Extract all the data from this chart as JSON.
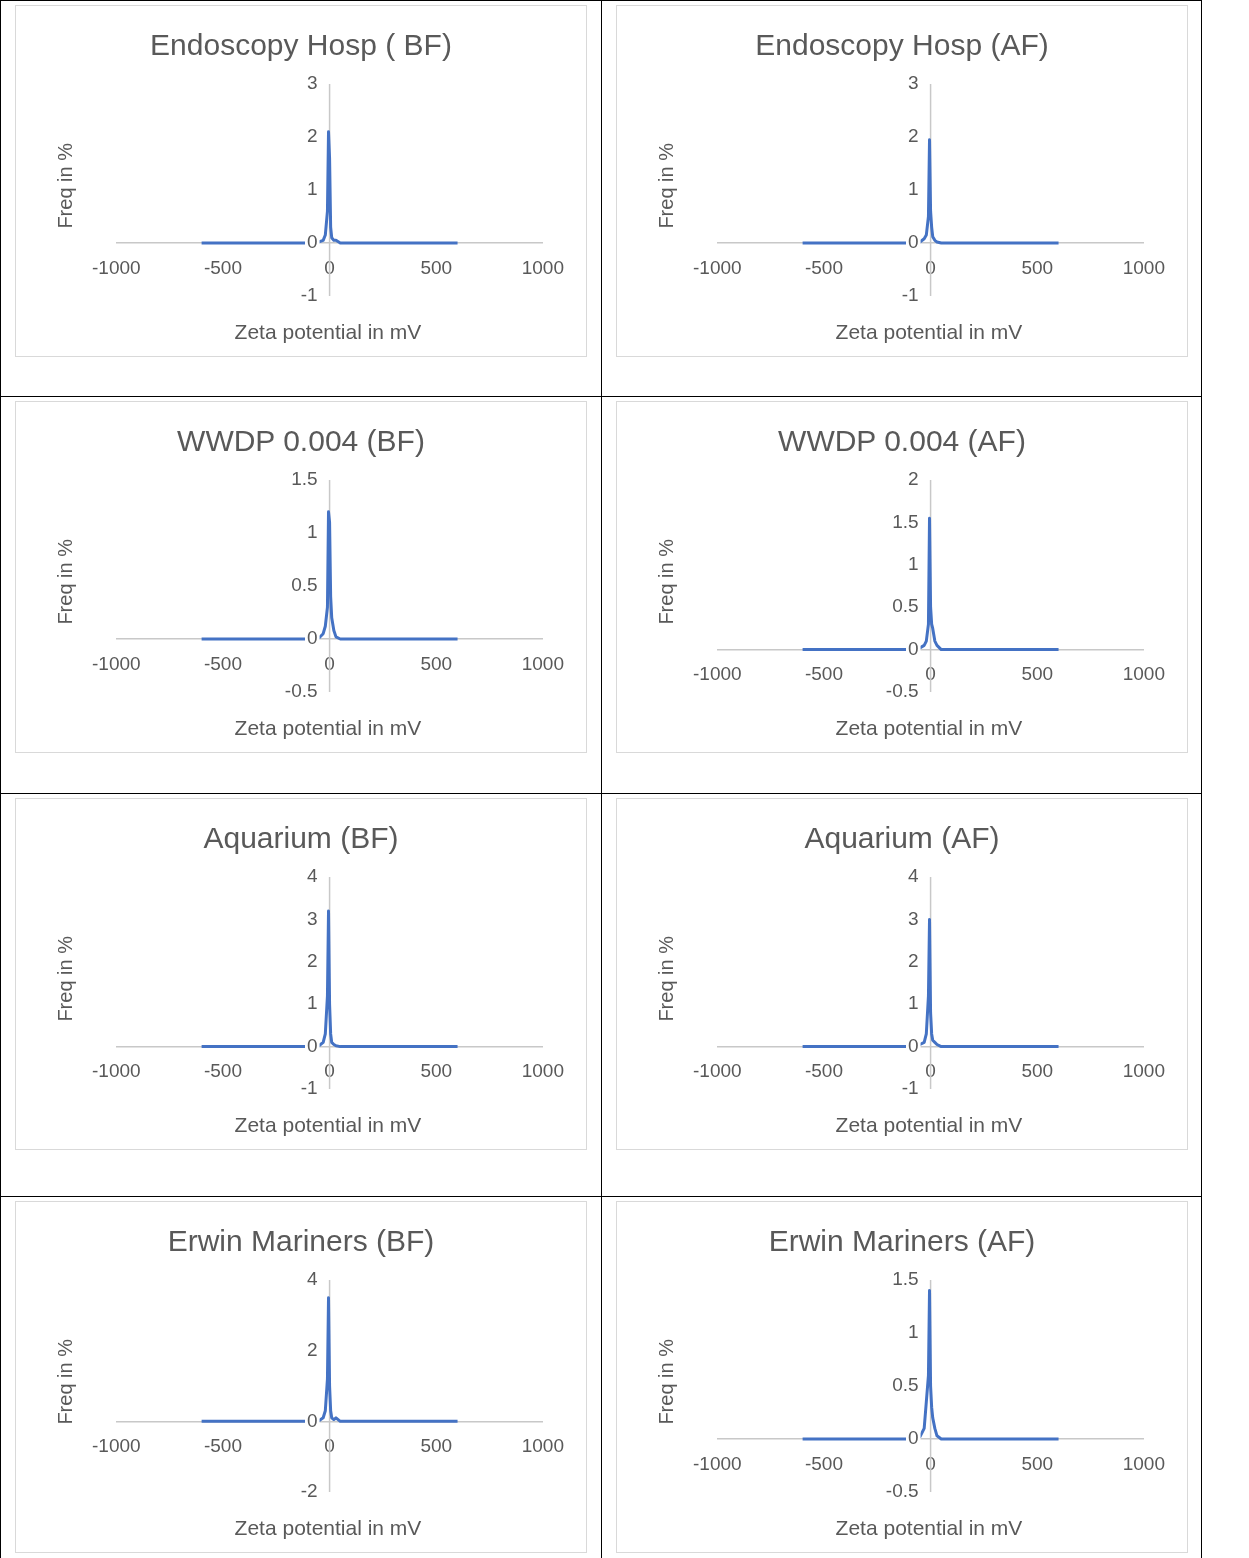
{
  "chart_data": [
    {
      "type": "line",
      "title": "Endoscopy Hosp ( BF)",
      "xlabel": "Zeta potential in mV",
      "ylabel": "Freq in %",
      "x": [
        -600,
        -100,
        -50,
        -30,
        -20,
        -10,
        -5,
        0,
        5,
        10,
        20,
        30,
        50,
        100,
        600
      ],
      "values": [
        0,
        0,
        0.02,
        0.05,
        0.15,
        0.6,
        2.1,
        1.6,
        0.3,
        0.1,
        0.05,
        0.05,
        0,
        0,
        0
      ],
      "color": "#4472c4",
      "xlim": [
        -1000,
        1000
      ],
      "xticks": [
        -1000,
        -500,
        0,
        500,
        1000
      ],
      "ylim": [
        -1,
        3
      ],
      "yticks": [
        -1,
        0,
        1,
        2,
        3
      ],
      "grid": false,
      "legend": false,
      "marker": "none"
    },
    {
      "type": "line",
      "title": "Endoscopy Hosp (AF)",
      "xlabel": "Zeta potential in mV",
      "ylabel": "Freq in %",
      "x": [
        -600,
        -100,
        -50,
        -30,
        -20,
        -10,
        -5,
        0,
        5,
        10,
        20,
        30,
        50,
        100,
        600
      ],
      "values": [
        0,
        0,
        0.02,
        0.08,
        0.15,
        0.5,
        1.95,
        0.6,
        0.3,
        0.12,
        0.05,
        0.02,
        0,
        0,
        0
      ],
      "color": "#4472c4",
      "xlim": [
        -1000,
        1000
      ],
      "xticks": [
        -1000,
        -500,
        0,
        500,
        1000
      ],
      "ylim": [
        -1,
        3
      ],
      "yticks": [
        -1,
        0,
        1,
        2,
        3
      ],
      "grid": false,
      "legend": false,
      "marker": "none"
    },
    {
      "type": "line",
      "title": "WWDP 0.004 (BF)",
      "xlabel": "Zeta potential in mV",
      "ylabel": "Freq in %",
      "x": [
        -600,
        -100,
        -50,
        -30,
        -20,
        -10,
        -5,
        0,
        5,
        10,
        20,
        30,
        50,
        100,
        600
      ],
      "values": [
        0,
        0,
        0.01,
        0.05,
        0.12,
        0.3,
        1.2,
        1.1,
        0.4,
        0.2,
        0.08,
        0.02,
        0,
        0,
        0
      ],
      "color": "#4472c4",
      "xlim": [
        -1000,
        1000
      ],
      "xticks": [
        -1000,
        -500,
        0,
        500,
        1000
      ],
      "ylim": [
        -0.5,
        1.5
      ],
      "yticks": [
        -0.5,
        0,
        0.5,
        1,
        1.5
      ],
      "grid": false,
      "legend": false,
      "marker": "none"
    },
    {
      "type": "line",
      "title": "WWDP 0.004 (AF)",
      "xlabel": "Zeta potential in mV",
      "ylabel": "Freq in %",
      "x": [
        -600,
        -100,
        -50,
        -30,
        -20,
        -10,
        -5,
        0,
        5,
        10,
        20,
        30,
        50,
        100,
        600
      ],
      "values": [
        0,
        0,
        0.02,
        0.05,
        0.1,
        0.3,
        1.55,
        0.5,
        0.3,
        0.25,
        0.1,
        0.05,
        0,
        0,
        0
      ],
      "color": "#4472c4",
      "xlim": [
        -1000,
        1000
      ],
      "xticks": [
        -1000,
        -500,
        0,
        500,
        1000
      ],
      "ylim": [
        -0.5,
        2
      ],
      "yticks": [
        -0.5,
        0,
        0.5,
        1,
        1.5,
        2
      ],
      "grid": false,
      "legend": false,
      "marker": "none"
    },
    {
      "type": "line",
      "title": "Aquarium (BF)",
      "xlabel": "Zeta potential in mV",
      "ylabel": "Freq in %",
      "x": [
        -600,
        -100,
        -50,
        -30,
        -20,
        -10,
        -5,
        0,
        5,
        10,
        20,
        30,
        50,
        100,
        600
      ],
      "values": [
        0,
        0,
        0.02,
        0.1,
        0.3,
        1.2,
        3.2,
        1,
        0.3,
        0.1,
        0.05,
        0.02,
        0,
        0,
        0
      ],
      "color": "#4472c4",
      "xlim": [
        -1000,
        1000
      ],
      "xticks": [
        -1000,
        -500,
        0,
        500,
        1000
      ],
      "ylim": [
        -1,
        4
      ],
      "yticks": [
        -1,
        0,
        1,
        2,
        3,
        4
      ],
      "grid": false,
      "legend": false,
      "marker": "none"
    },
    {
      "type": "line",
      "title": "Aquarium (AF)",
      "xlabel": "Zeta potential in mV",
      "ylabel": "Freq in %",
      "x": [
        -600,
        -100,
        -50,
        -30,
        -20,
        -10,
        -5,
        0,
        5,
        10,
        20,
        30,
        50,
        100,
        600
      ],
      "values": [
        0,
        0,
        0.05,
        0.1,
        0.3,
        1.2,
        3,
        0.8,
        0.3,
        0.15,
        0.1,
        0.05,
        0,
        0,
        0
      ],
      "color": "#4472c4",
      "xlim": [
        -1000,
        1000
      ],
      "xticks": [
        -1000,
        -500,
        0,
        500,
        1000
      ],
      "ylim": [
        -1,
        4
      ],
      "yticks": [
        -1,
        0,
        1,
        2,
        3,
        4
      ],
      "grid": false,
      "legend": false,
      "marker": "none"
    },
    {
      "type": "line",
      "title": "Erwin Mariners (BF)",
      "xlabel": "Zeta potential in mV",
      "ylabel": "Freq in %",
      "x": [
        -600,
        -100,
        -50,
        -30,
        -20,
        -10,
        -5,
        0,
        5,
        10,
        20,
        30,
        50,
        100,
        600
      ],
      "values": [
        0,
        0,
        0.02,
        0.1,
        0.3,
        1.2,
        3.5,
        1,
        0.3,
        0.1,
        0.05,
        0.1,
        0,
        0,
        0
      ],
      "color": "#4472c4",
      "xlim": [
        -1000,
        1000
      ],
      "xticks": [
        -1000,
        -500,
        0,
        500,
        1000
      ],
      "ylim": [
        -2,
        4
      ],
      "yticks": [
        -2,
        0,
        2,
        4
      ],
      "grid": false,
      "legend": false,
      "marker": "none"
    },
    {
      "type": "line",
      "title": "Erwin Mariners (AF)",
      "xlabel": "Zeta potential in mV",
      "ylabel": "Freq in %",
      "x": [
        -600,
        -100,
        -50,
        -30,
        -20,
        -10,
        -5,
        0,
        5,
        10,
        20,
        30,
        50,
        100,
        600
      ],
      "values": [
        0,
        0,
        0.02,
        0.1,
        0.35,
        0.6,
        1.4,
        0.5,
        0.3,
        0.2,
        0.1,
        0.03,
        0,
        0,
        0
      ],
      "color": "#4472c4",
      "xlim": [
        -1000,
        1000
      ],
      "xticks": [
        -1000,
        -500,
        0,
        500,
        1000
      ],
      "ylim": [
        -0.5,
        1.5
      ],
      "yticks": [
        -0.5,
        0,
        0.5,
        1,
        1.5
      ],
      "grid": false,
      "legend": false,
      "marker": "none"
    }
  ]
}
